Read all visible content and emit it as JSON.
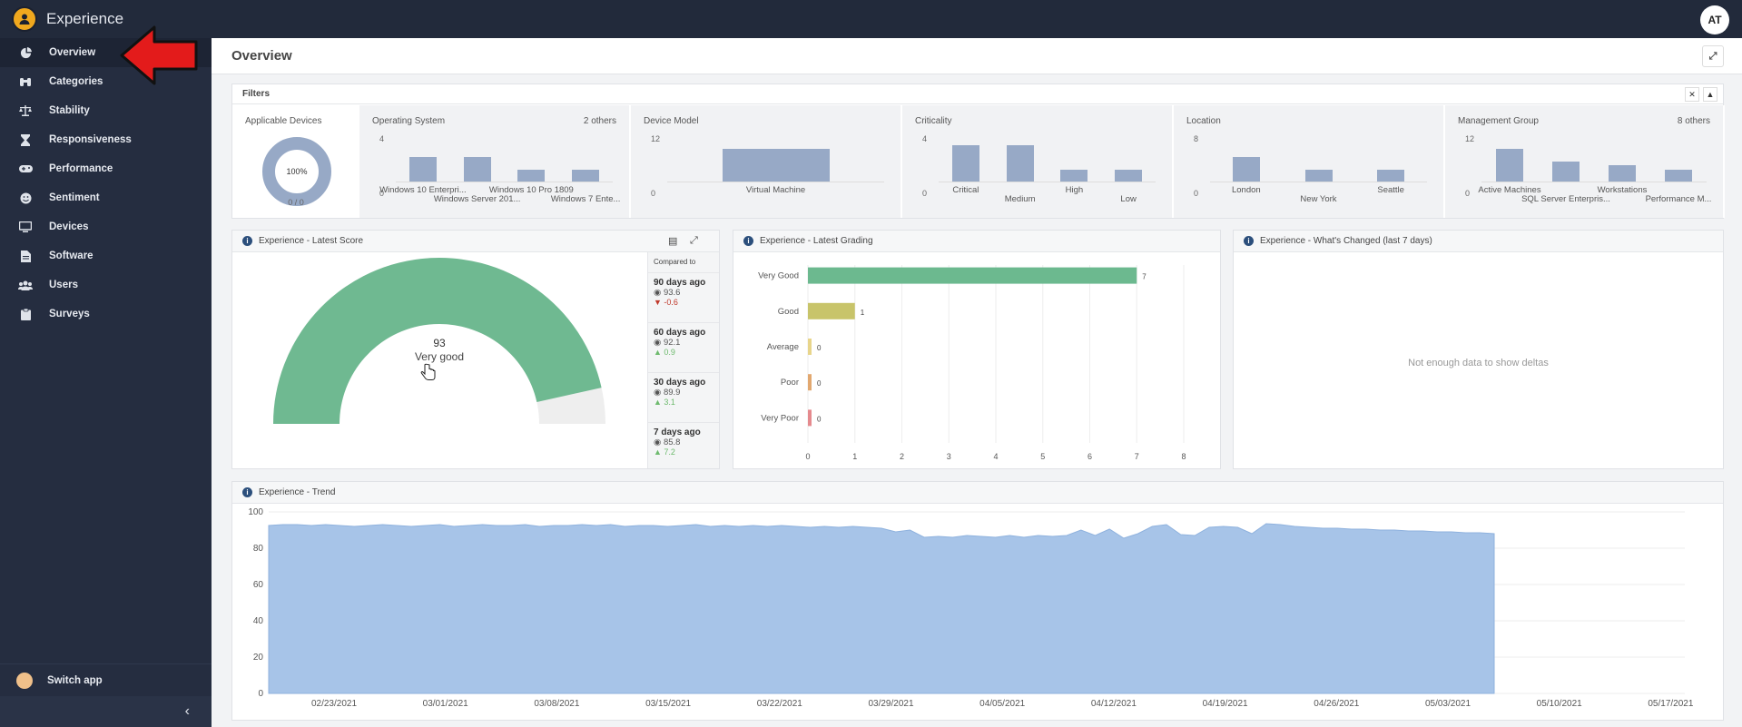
{
  "app": {
    "title": "Experience",
    "avatar_initials": "AT"
  },
  "sidebar": {
    "items": [
      {
        "label": "Overview",
        "icon": "pie-chart-icon",
        "active": true
      },
      {
        "label": "Categories",
        "icon": "binoculars-icon"
      },
      {
        "label": "Stability",
        "icon": "scale-icon"
      },
      {
        "label": "Responsiveness",
        "icon": "hourglass-icon"
      },
      {
        "label": "Performance",
        "icon": "gamepad-icon"
      },
      {
        "label": "Sentiment",
        "icon": "smiley-icon"
      },
      {
        "label": "Devices",
        "icon": "monitor-icon"
      },
      {
        "label": "Software",
        "icon": "file-icon"
      },
      {
        "label": "Users",
        "icon": "users-icon"
      },
      {
        "label": "Surveys",
        "icon": "clipboard-icon"
      }
    ],
    "switch_app": "Switch app",
    "collapse": "‹"
  },
  "page": {
    "title": "Overview"
  },
  "filters": {
    "title": "Filters",
    "applicable": {
      "label": "Applicable Devices",
      "percent": "100%",
      "count": "0 / 0"
    },
    "cells": [
      {
        "label": "Operating System",
        "others": "2 others",
        "ymax": "4",
        "yzero": "0",
        "bars": [
          {
            "value": 2,
            "label": "Windows 10 Enterpri..."
          },
          {
            "value": 2,
            "label": "Windows Server 201..."
          },
          {
            "value": 1,
            "label": "Windows 10 Pro 1809"
          },
          {
            "value": 1,
            "label": "Windows 7 Ente..."
          }
        ]
      },
      {
        "label": "Device Model",
        "others": "",
        "ymax": "12",
        "yzero": "0",
        "bars": [
          {
            "value": 8,
            "label": "Virtual Machine"
          }
        ]
      },
      {
        "label": "Criticality",
        "others": "",
        "ymax": "4",
        "yzero": "0",
        "bars": [
          {
            "value": 3,
            "label": "Critical"
          },
          {
            "value": 3,
            "label": "Medium"
          },
          {
            "value": 1,
            "label": "High"
          },
          {
            "value": 1,
            "label": "Low"
          }
        ]
      },
      {
        "label": "Location",
        "others": "",
        "ymax": "8",
        "yzero": "0",
        "bars": [
          {
            "value": 4,
            "label": "London"
          },
          {
            "value": 2,
            "label": "New York"
          },
          {
            "value": 2,
            "label": "Seattle"
          }
        ]
      },
      {
        "label": "Management Group",
        "others": "8 others",
        "ymax": "12",
        "yzero": "0",
        "bars": [
          {
            "value": 8,
            "label": "Active Machines"
          },
          {
            "value": 5,
            "label": "SQL Server Enterpris..."
          },
          {
            "value": 4,
            "label": "Workstations"
          },
          {
            "value": 3,
            "label": "Performance M..."
          }
        ]
      }
    ]
  },
  "score": {
    "title": "Experience - Latest Score",
    "value": "93",
    "grade": "Very good",
    "gauge_fraction": 0.93,
    "compared_to": "Compared to",
    "comparisons": [
      {
        "period": "90 days ago",
        "value": "93.6",
        "delta": "-0.6",
        "dir": "down"
      },
      {
        "period": "60 days ago",
        "value": "92.1",
        "delta": "0.9",
        "dir": "up"
      },
      {
        "period": "30 days ago",
        "value": "89.9",
        "delta": "3.1",
        "dir": "up"
      },
      {
        "period": "7 days ago",
        "value": "85.8",
        "delta": "7.2",
        "dir": "up"
      }
    ]
  },
  "changed": {
    "title": "Experience - What's Changed (last 7 days)",
    "message": "Not enough data to show deltas"
  },
  "trend_panel": {
    "title": "Experience - Trend"
  },
  "chart_data": [
    {
      "type": "bar",
      "title": "Experience - Latest Grading",
      "orientation": "horizontal",
      "categories": [
        "Very Good",
        "Good",
        "Average",
        "Poor",
        "Very Poor"
      ],
      "values": [
        7,
        1,
        0,
        0,
        0
      ],
      "colors": [
        "#6cb98f",
        "#c8c46a",
        "#e8d58b",
        "#e2a870",
        "#e58a8e"
      ],
      "xlim": [
        0,
        8
      ],
      "xticks": [
        "0",
        "1",
        "2",
        "3",
        "4",
        "5",
        "6",
        "7",
        "8"
      ],
      "grid": true
    },
    {
      "type": "area",
      "title": "Experience - Trend",
      "ylim": [
        0,
        100
      ],
      "yticks": [
        "0",
        "20",
        "40",
        "60",
        "80",
        "100"
      ],
      "xticks": [
        "02/23/2021",
        "03/01/2021",
        "03/08/2021",
        "03/15/2021",
        "03/22/2021",
        "03/29/2021",
        "04/05/2021",
        "04/12/2021",
        "04/19/2021",
        "04/26/2021",
        "05/03/2021",
        "05/10/2021",
        "05/17/2021"
      ],
      "color": "#a7c4e8",
      "values": [
        92.5,
        93,
        93,
        92.5,
        93,
        92.5,
        92,
        92.5,
        93,
        92.5,
        92,
        92.5,
        93,
        92,
        92.5,
        93,
        92.5,
        92.5,
        93,
        92,
        92.5,
        92.5,
        93,
        92.5,
        93,
        92,
        92.5,
        92.5,
        92,
        92.5,
        93,
        92,
        92.5,
        92,
        92.5,
        92,
        92.5,
        92,
        91.5,
        92,
        91.5,
        92,
        91.5,
        91,
        89,
        90,
        86,
        86.5,
        86,
        87,
        86.5,
        86,
        87,
        86,
        87,
        86.5,
        87,
        90,
        87,
        90.5,
        85.5,
        88,
        92,
        93,
        87.5,
        87,
        91.5,
        92,
        91.5,
        88,
        93.5,
        93,
        92,
        91.5,
        91,
        91,
        90.5,
        90.5,
        90,
        90,
        89.5,
        89.5,
        89,
        89,
        88.5,
        88.5,
        88
      ]
    }
  ]
}
